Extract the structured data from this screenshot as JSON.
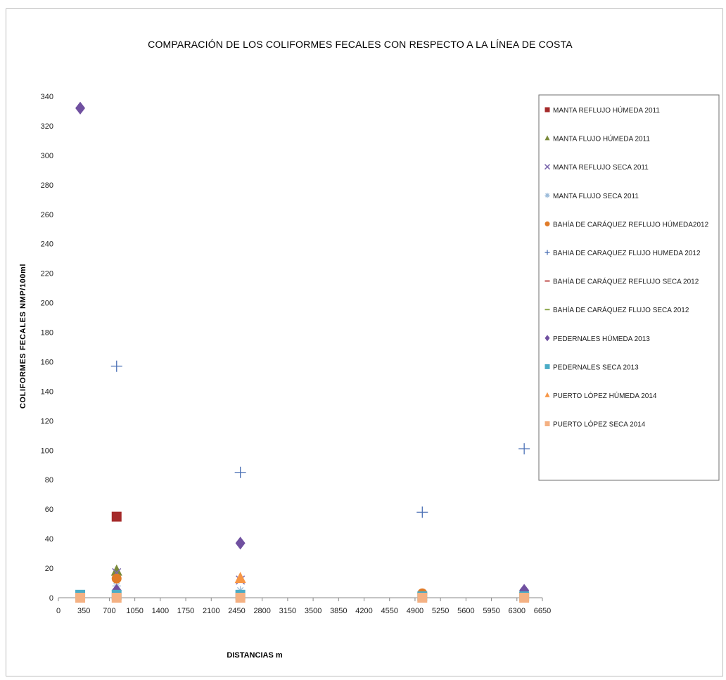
{
  "chart_data": {
    "type": "scatter",
    "title": "COMPARACIÓN DE LOS COLIFORMES FECALES CON RESPECTO A LA LÍNEA DE COSTA",
    "xlabel": "DISTANCIAS m",
    "ylabel": "COLIFORMES FECALES NMP/100ml",
    "xlim": [
      0,
      6650
    ],
    "ylim": [
      0,
      340
    ],
    "x_ticks": [
      0,
      350,
      700,
      1050,
      1400,
      1750,
      2100,
      2450,
      2800,
      3150,
      3500,
      3850,
      4200,
      4550,
      4900,
      5250,
      5600,
      5950,
      6300,
      6650
    ],
    "y_ticks": [
      0,
      20,
      40,
      60,
      80,
      100,
      120,
      140,
      160,
      180,
      200,
      220,
      240,
      260,
      280,
      300,
      320,
      340
    ],
    "grid": false,
    "legend_position": "right",
    "series": [
      {
        "name": "MANTA REFLUJO HÚMEDA 2011",
        "marker": "square",
        "color": "#a52a2a",
        "x": [
          800
        ],
        "y": [
          55
        ]
      },
      {
        "name": "MANTA FLUJO HÚMEDA 2011",
        "marker": "triangle",
        "color": "#7a8a3a",
        "x": [
          800
        ],
        "y": [
          18
        ]
      },
      {
        "name": "MANTA REFLUJO SECA 2011",
        "marker": "x",
        "color": "#7b68ae",
        "x": [
          800,
          2500
        ],
        "y": [
          17,
          12
        ]
      },
      {
        "name": "MANTA FLUJO SECA 2011",
        "marker": "star",
        "color": "#9bbbd9",
        "x": [
          800,
          2500
        ],
        "y": [
          8,
          5
        ]
      },
      {
        "name": "BAHÍA DE CARÁQUEZ  REFLUJO HÚMEDA2012",
        "marker": "circle",
        "color": "#e07b28",
        "x": [
          800,
          5000,
          6400
        ],
        "y": [
          13,
          3,
          3
        ]
      },
      {
        "name": "BAHIA DE CARAQUEZ FLUJO HUMEDA  2012",
        "marker": "plus",
        "color": "#4a6fb5",
        "x": [
          800,
          2500,
          5000,
          6400
        ],
        "y": [
          157,
          85,
          58,
          101
        ]
      },
      {
        "name": "BAHÍA DE CARÁQUEZ REFLUJO SECA 2012",
        "marker": "dash",
        "color": "#c0504d",
        "x": [
          800,
          2500
        ],
        "y": [
          2,
          2
        ]
      },
      {
        "name": "BAHÍA DE CARÁQUEZ FLUJO SECA 2012",
        "marker": "dash",
        "color": "#8aa64a",
        "x": [
          800,
          2500
        ],
        "y": [
          4,
          4
        ]
      },
      {
        "name": "PEDERNALES  HÚMEDA 2013",
        "marker": "diamond",
        "color": "#7050a0",
        "x": [
          300,
          800,
          2500,
          6400
        ],
        "y": [
          332,
          5,
          37,
          5
        ]
      },
      {
        "name": "PEDERNALES  SECA 2013",
        "marker": "square",
        "color": "#4bacc6",
        "x": [
          300,
          800,
          2500,
          5000,
          6400
        ],
        "y": [
          2,
          2,
          2,
          1,
          1
        ]
      },
      {
        "name": "PUERTO LÓPEZ HÚMEDA 2014",
        "marker": "triangle",
        "color": "#f79646",
        "x": [
          2500
        ],
        "y": [
          13
        ]
      },
      {
        "name": "PUERTO LÓPEZ  SECA 2014",
        "marker": "square",
        "color": "#f4b183",
        "x": [
          300,
          800,
          2500,
          5000,
          6400
        ],
        "y": [
          0,
          0,
          0,
          0,
          0
        ]
      }
    ]
  }
}
